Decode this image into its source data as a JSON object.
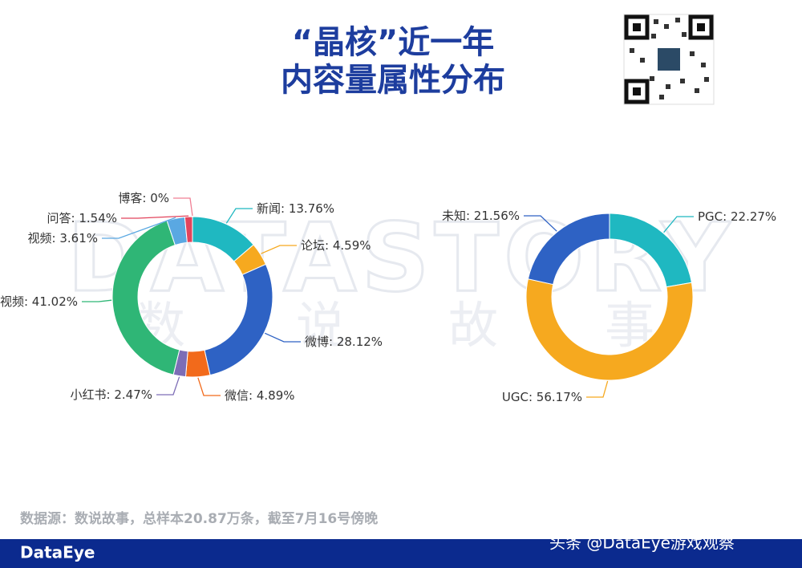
{
  "header": {
    "title_line1": "“晶核”近一年",
    "title_line2": "内容量属性分布"
  },
  "watermark": {
    "latin": "DATASTORY",
    "chinese": [
      "数",
      "说",
      "故",
      "事"
    ]
  },
  "separator": ": ",
  "chart_data": [
    {
      "type": "donut",
      "categories": [
        "新闻",
        "论坛",
        "微博",
        "微信",
        "小红书",
        "短视频",
        "视频",
        "问答",
        "博客"
      ],
      "values": [
        13.76,
        4.59,
        28.12,
        4.89,
        2.47,
        41.02,
        3.61,
        1.54,
        0
      ],
      "value_labels": [
        "13.76%",
        "4.59%",
        "28.12%",
        "4.89%",
        "2.47%",
        "41.02%",
        "3.61%",
        "1.54%",
        "0%"
      ],
      "colors": [
        "#1fb8c1",
        "#f6a91f",
        "#2e62c4",
        "#f26a1b",
        "#7d6db6",
        "#2fb676",
        "#5aa8e2",
        "#e2445c",
        "#f07f94"
      ]
    },
    {
      "type": "donut",
      "categories": [
        "PGC",
        "UGC",
        "未知"
      ],
      "values": [
        22.27,
        56.17,
        21.56
      ],
      "value_labels": [
        "22.27%",
        "56.17%",
        "21.56%"
      ],
      "colors": [
        "#1fb8c1",
        "#f6a91f",
        "#2e62c4"
      ]
    }
  ],
  "source": "数据源：数说故事，总样本20.87万条，截至7月16号傍晚",
  "footer": {
    "logo": "DataEye",
    "credit": "头条 @DataEye游戏观察"
  }
}
